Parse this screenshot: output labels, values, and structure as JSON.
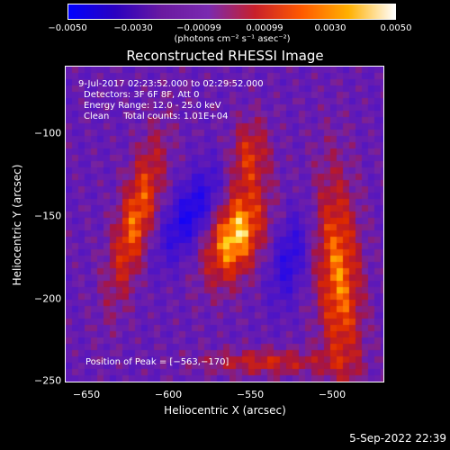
{
  "colorbar": {
    "ticks": [
      "−0.0050",
      "−0.0030",
      "−0.00099",
      "0.00099",
      "0.0030",
      "0.0050"
    ],
    "unit_label": "(photons cm⁻² s⁻¹ asec⁻²)",
    "colors": [
      "#0000ff",
      "#2a00c0",
      "#6a1aa0",
      "#7a2ab0",
      "#c8202a",
      "#ff5a00",
      "#ffb000",
      "#ffffff"
    ]
  },
  "image": {
    "title": "Reconstructed RHESSI Image",
    "info_lines": [
      "9-Jul-2017 02:23:52.000 to 02:29:52.000",
      "Detectors: 3F 6F 8F, Att 0",
      "Energy Range: 12.0 - 25.0 keV",
      "Clean     Total counts: 1.01E+04"
    ],
    "peak_text": "Position of Peak = [−563,−170]",
    "xlabel": "Heliocentric X (arcsec)",
    "ylabel": "Heliocentric Y (arcsec)",
    "xticks": [
      "−650",
      "−600",
      "−550",
      "−500"
    ],
    "yticks": [
      "−100",
      "−150",
      "−200",
      "−250"
    ],
    "xrange": [
      -666,
      -472
    ],
    "yrange": [
      -248,
      -57
    ],
    "xtick_values": [
      -650,
      -600,
      -550,
      -500
    ],
    "ytick_values": [
      -100,
      -150,
      -200,
      -250
    ]
  },
  "footer": {
    "timestamp": "5-Sep-2022 22:39"
  }
}
